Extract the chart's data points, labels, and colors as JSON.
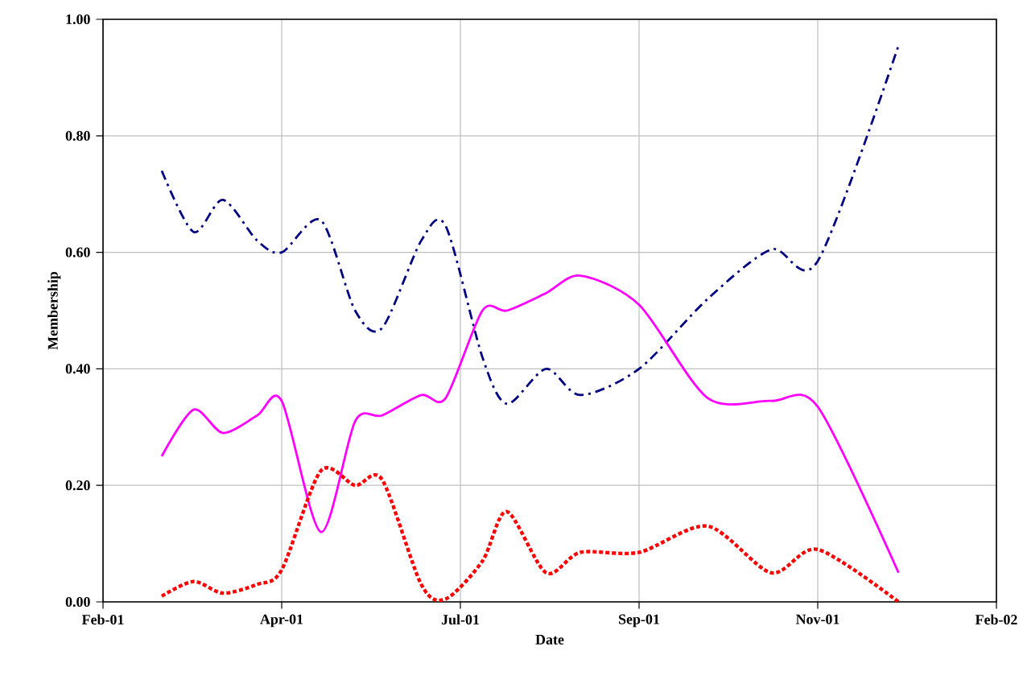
{
  "chart_data": {
    "type": "line",
    "xlabel": "Date",
    "ylabel": "Membership",
    "x": [
      "2001-03-01",
      "2001-03-14",
      "2001-03-26",
      "2001-04-09",
      "2001-04-19",
      "2001-05-05",
      "2001-05-19",
      "2001-05-30",
      "2001-06-15",
      "2001-06-25",
      "2001-07-10",
      "2001-07-20",
      "2001-08-05",
      "2001-08-19",
      "2001-09-12",
      "2001-10-10",
      "2001-11-05",
      "2001-11-24",
      "2001-12-27"
    ],
    "series": [
      {
        "color": "#000080",
        "line_style": "dashdot",
        "values": [
          0.74,
          0.635,
          0.69,
          0.62,
          0.6,
          0.655,
          0.5,
          0.47,
          0.62,
          0.645,
          0.42,
          0.34,
          0.4,
          0.355,
          0.4,
          0.52,
          0.605,
          0.585,
          0.955
        ]
      },
      {
        "color": "#ff00ff",
        "line_style": "solid",
        "values": [
          0.25,
          0.33,
          0.29,
          0.32,
          0.345,
          0.12,
          0.31,
          0.32,
          0.355,
          0.35,
          0.5,
          0.5,
          0.53,
          0.56,
          0.51,
          0.35,
          0.345,
          0.335,
          0.05
        ]
      },
      {
        "color": "#ff0000",
        "line_style": "dotted",
        "values": [
          0.01,
          0.035,
          0.015,
          0.03,
          0.055,
          0.225,
          0.2,
          0.21,
          0.03,
          0.005,
          0.07,
          0.155,
          0.05,
          0.085,
          0.085,
          0.13,
          0.05,
          0.09,
          0.0
        ]
      }
    ],
    "xlim": [
      "2001-02-05",
      "2002-02-05"
    ],
    "xticks": [
      {
        "value": "2001-02-05",
        "label": "Feb-01"
      },
      {
        "value": "2001-04-19",
        "label": "Apr-01"
      },
      {
        "value": "2001-07-01",
        "label": "Jul-01"
      },
      {
        "value": "2001-09-12",
        "label": "Sep-01"
      },
      {
        "value": "2001-11-24",
        "label": "Nov-01"
      },
      {
        "value": "2002-02-05",
        "label": "Feb-02"
      }
    ],
    "ylim": [
      0,
      1
    ],
    "yticks": [
      {
        "value": 0,
        "label": "0.00"
      },
      {
        "value": 0.2,
        "label": "0.20"
      },
      {
        "value": 0.4,
        "label": "0.40"
      },
      {
        "value": 0.6,
        "label": "0.60"
      },
      {
        "value": 0.8,
        "label": "0.80"
      },
      {
        "value": 1,
        "label": "1.00"
      }
    ],
    "grid": true,
    "marker": "none"
  }
}
